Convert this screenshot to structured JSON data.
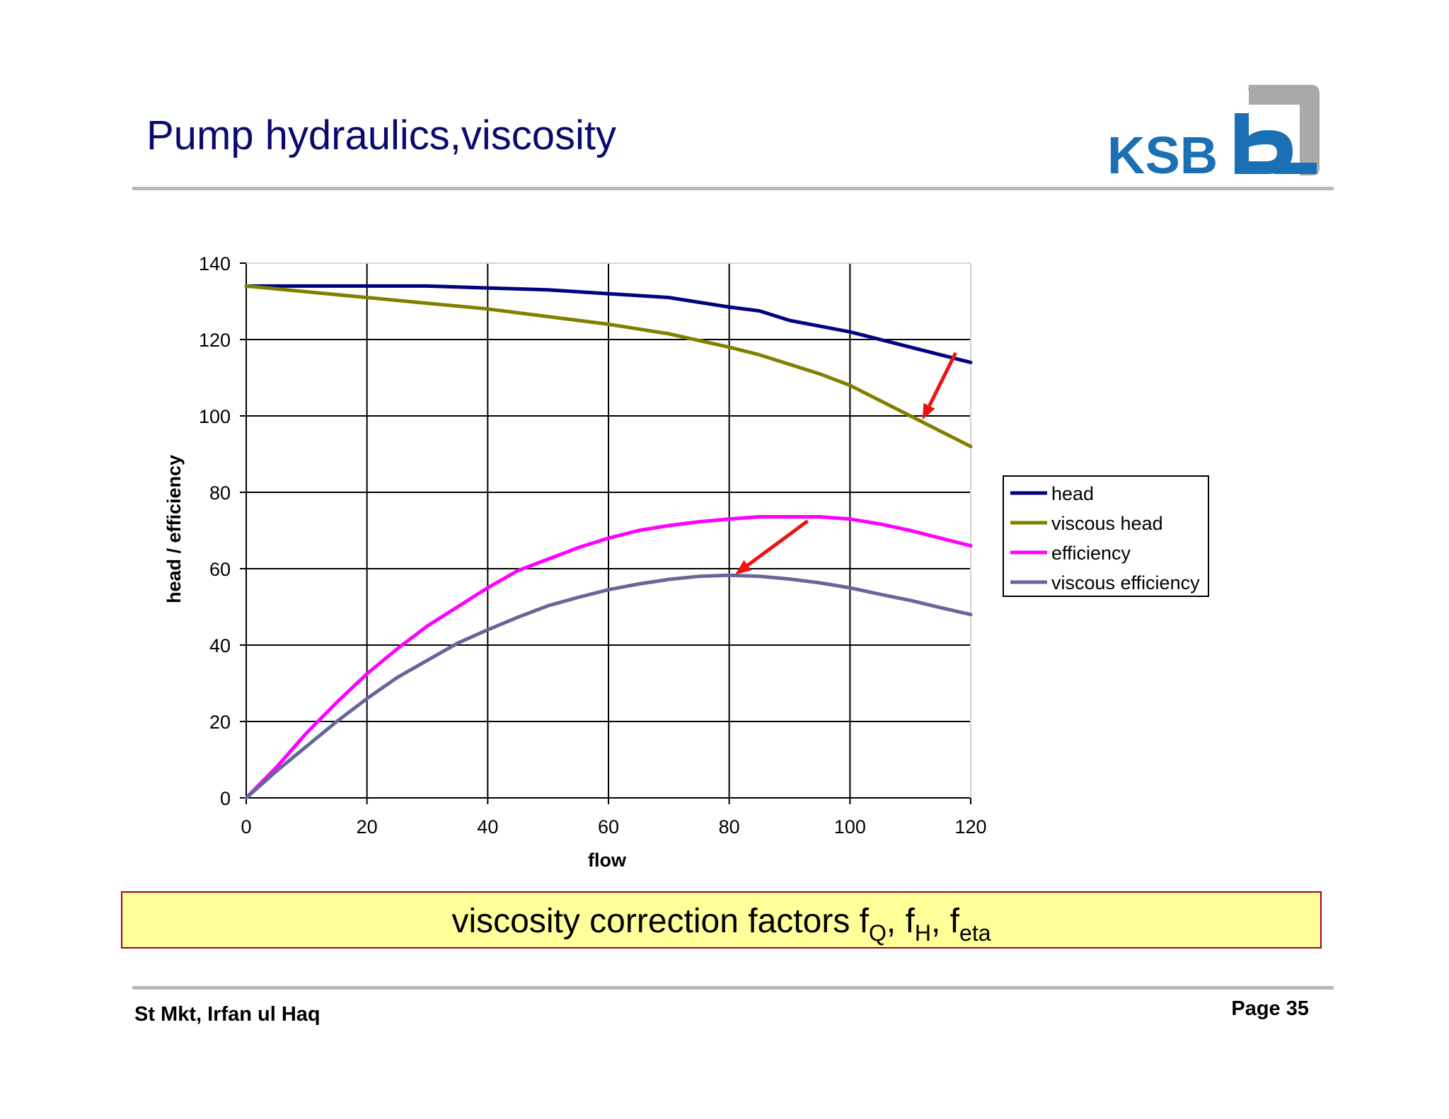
{
  "slide": {
    "title": "Pump hydraulics,viscosity",
    "logo_text": "KSB",
    "callout": {
      "text": "viscosity correction factors f",
      "sub_q": "Q",
      "sep1": ", f",
      "sub_h": "H",
      "sep2": ", f",
      "sub_eta": "eta"
    },
    "footer_left": "St Mkt, Irfan ul Haq",
    "footer_right": "Page 35"
  },
  "colors": {
    "title": "#0a0a6e",
    "logo_blue": "#1a6fb5",
    "logo_grey": "#a9a9a9",
    "callout_bg": "#ffff99",
    "callout_border": "#a0001e",
    "arrow": "#ee1111"
  },
  "chart_data": {
    "type": "line",
    "xlabel": "flow",
    "ylabel": "head / efficiency",
    "xlim": [
      0,
      120
    ],
    "ylim": [
      0,
      140
    ],
    "xticks": [
      0,
      20,
      40,
      60,
      80,
      100,
      120
    ],
    "yticks": [
      0,
      20,
      40,
      60,
      80,
      100,
      120,
      140
    ],
    "grid": true,
    "legend_position": "right",
    "series": [
      {
        "name": "head",
        "color": "#000080",
        "x": [
          0,
          10,
          20,
          30,
          40,
          50,
          60,
          70,
          80,
          85,
          90,
          100,
          110,
          120
        ],
        "y": [
          134,
          134,
          134,
          134,
          133.5,
          133,
          132,
          131,
          128.5,
          127.5,
          125,
          122,
          118,
          114
        ]
      },
      {
        "name": "viscous head",
        "color": "#808000",
        "x": [
          0,
          10,
          20,
          30,
          40,
          50,
          60,
          70,
          80,
          85,
          90,
          95,
          100,
          105,
          110,
          115,
          120
        ],
        "y": [
          134,
          132.5,
          131,
          129.5,
          128,
          126,
          124,
          121.5,
          118,
          116,
          113.5,
          111,
          108,
          104,
          100,
          96,
          92
        ]
      },
      {
        "name": "efficiency",
        "color": "#ff00ff",
        "x": [
          0,
          5,
          10,
          15,
          20,
          25,
          30,
          35,
          40,
          45,
          50,
          55,
          60,
          65,
          70,
          75,
          80,
          85,
          90,
          95,
          100,
          105,
          110,
          115,
          120
        ],
        "y": [
          0,
          8,
          17,
          25,
          32.5,
          39,
          45,
          50,
          55,
          59.5,
          62.5,
          65.5,
          68,
          70,
          71.3,
          72.3,
          73,
          73.6,
          73.6,
          73.6,
          73,
          71.7,
          70,
          68,
          66
        ]
      },
      {
        "name": "viscous efficiency",
        "color": "#666699",
        "x": [
          0,
          5,
          10,
          15,
          20,
          25,
          30,
          35,
          40,
          45,
          50,
          55,
          60,
          65,
          70,
          75,
          80,
          85,
          90,
          95,
          100,
          105,
          110,
          115,
          120
        ],
        "y": [
          0,
          7,
          13.5,
          20,
          26,
          31.5,
          36,
          40.5,
          44,
          47.3,
          50.3,
          52.5,
          54.5,
          56,
          57.2,
          58,
          58.3,
          58,
          57.3,
          56.3,
          55,
          53.3,
          51.7,
          49.8,
          48
        ]
      }
    ],
    "annotations": [
      {
        "type": "arrow",
        "from": [
          117.5,
          116.5
        ],
        "to": [
          112,
          99
        ]
      },
      {
        "type": "arrow",
        "from": [
          93,
          72.5
        ],
        "to": [
          81,
          58.5
        ]
      }
    ]
  }
}
